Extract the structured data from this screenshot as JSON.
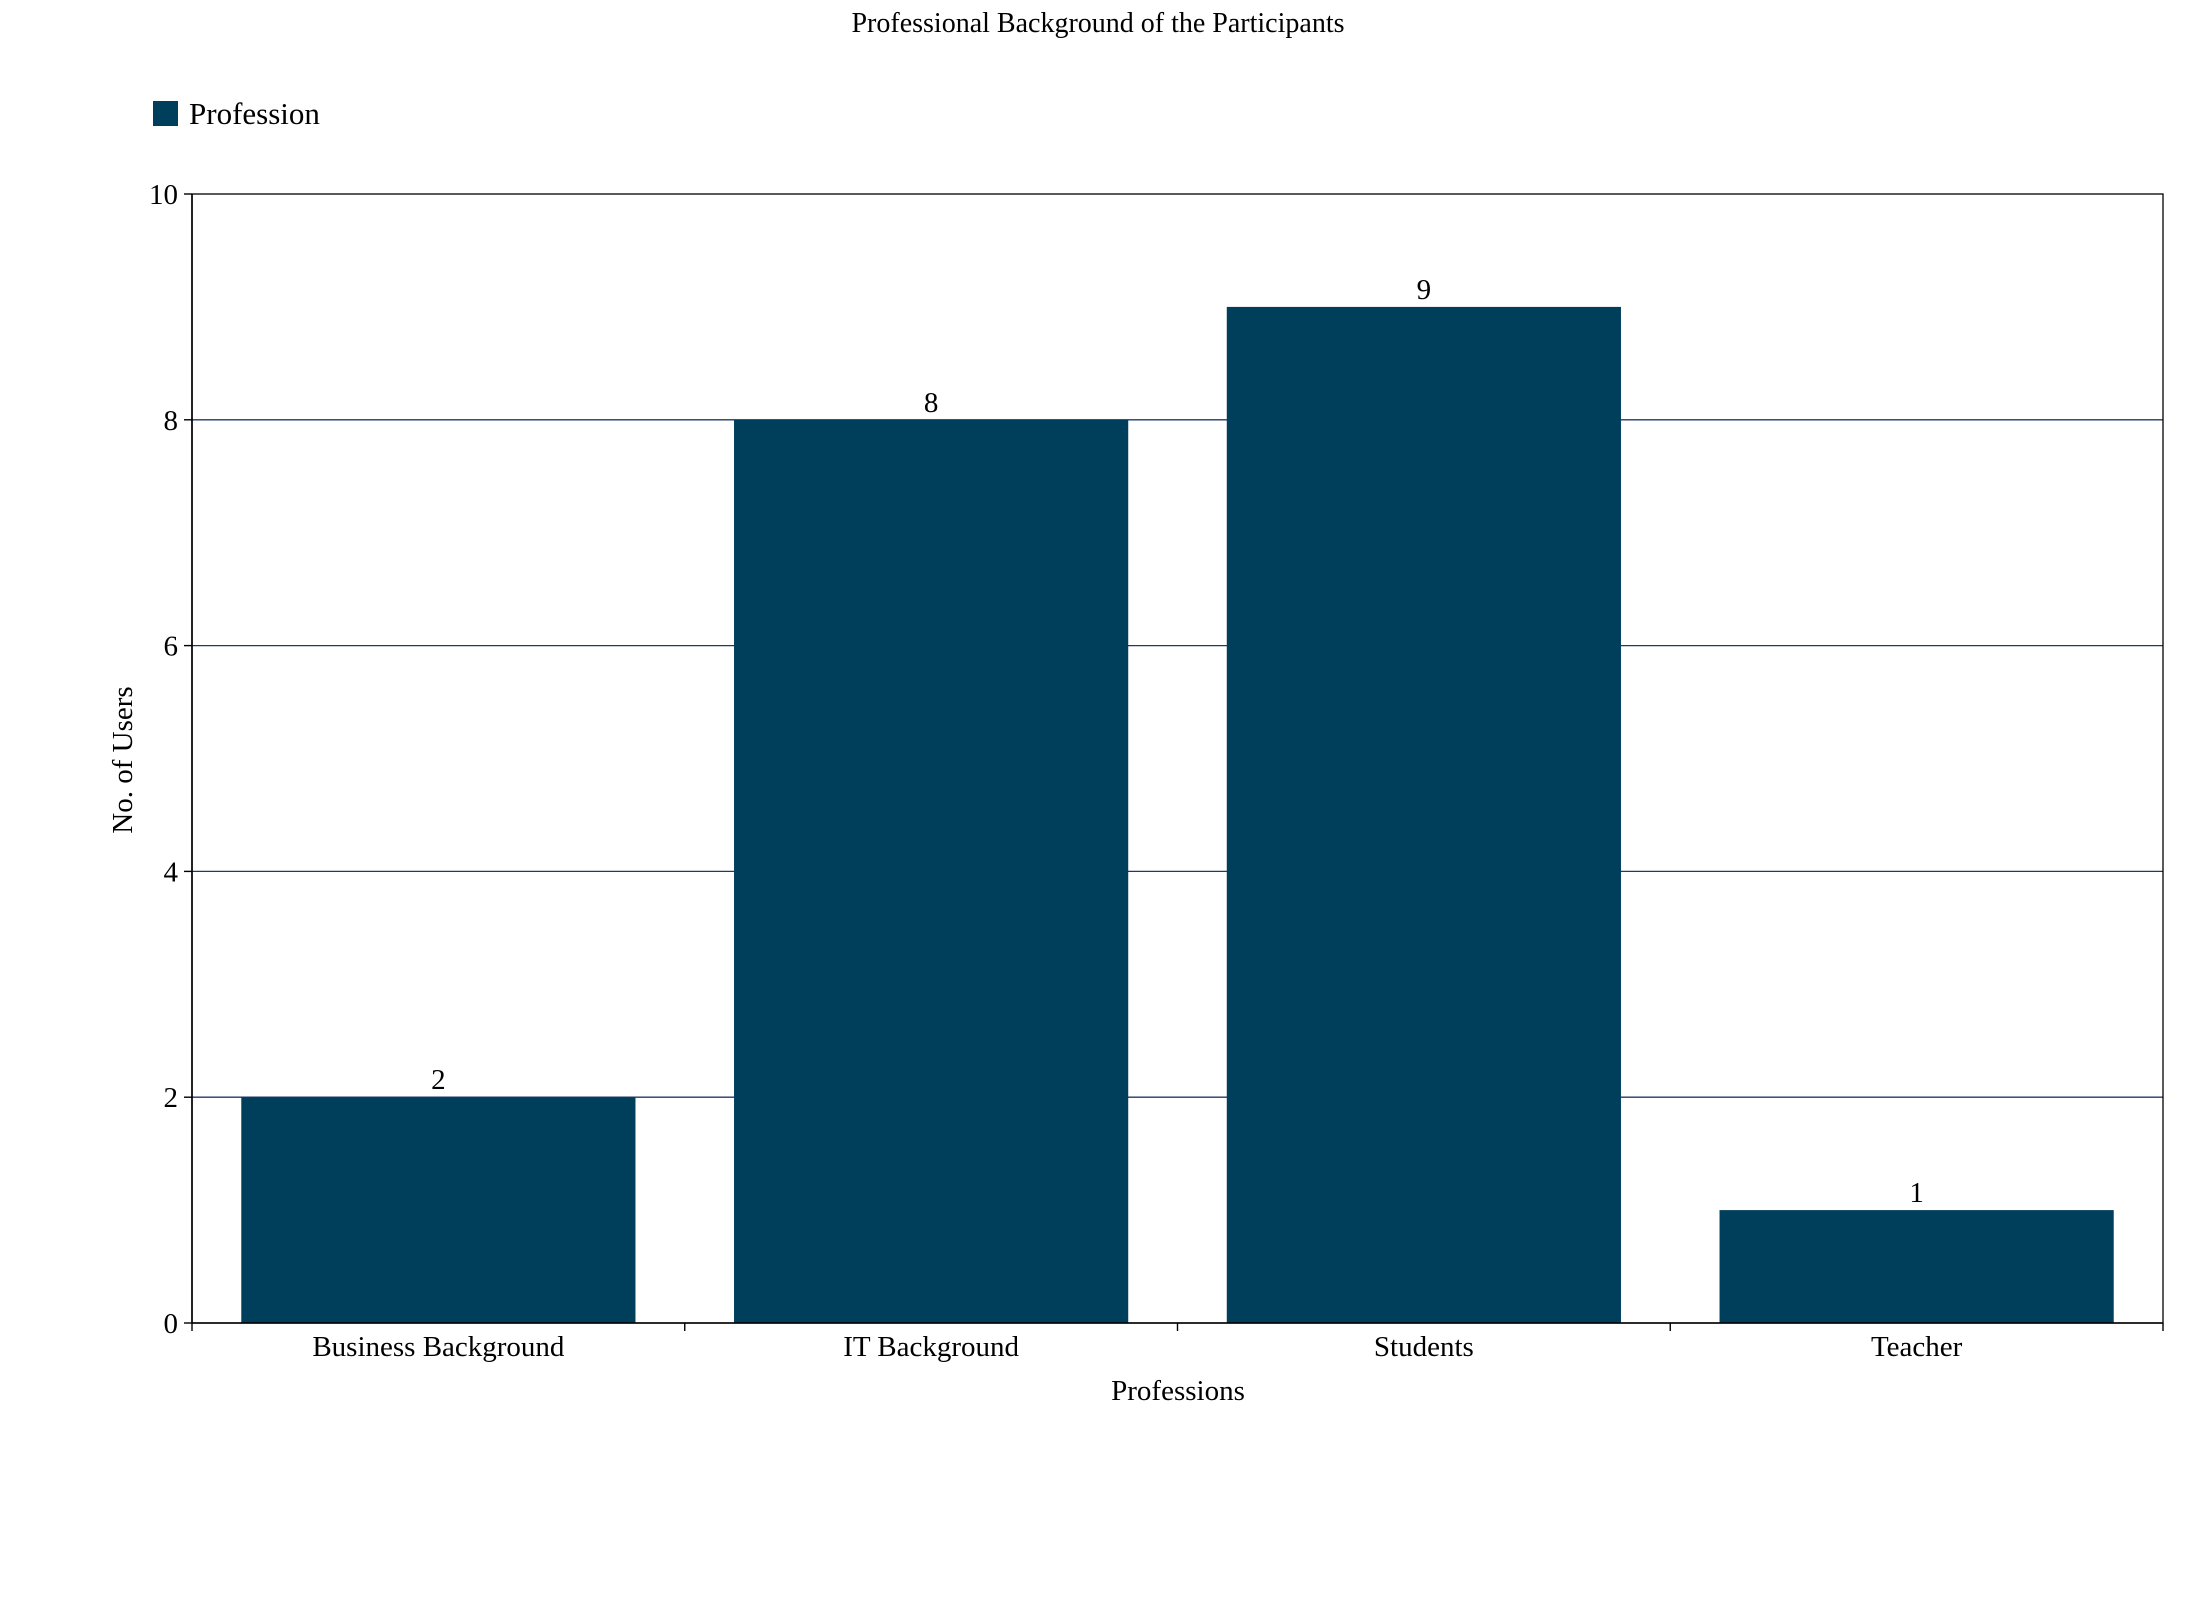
{
  "chart_data": {
    "type": "bar",
    "title": "Professional Background of the Participants",
    "xlabel": "Professions",
    "ylabel": "No. of Users",
    "categories": [
      "Business Background",
      "IT Background",
      "Students",
      "Teacher"
    ],
    "series": [
      {
        "name": "Profession",
        "values": [
          2,
          8,
          9,
          1
        ]
      }
    ],
    "data_labels": [
      "2",
      "8",
      "9",
      "1"
    ],
    "ylim": [
      0,
      10
    ],
    "yticks": [
      0,
      2,
      4,
      6,
      8,
      10
    ],
    "ytick_labels": [
      "0",
      "2",
      "4",
      "6",
      "8",
      "10"
    ],
    "grid": true,
    "legend_position": "top-left",
    "colors": {
      "bar": "#003f5c",
      "grid": "#1f3a6a",
      "axis": "#000000"
    }
  }
}
